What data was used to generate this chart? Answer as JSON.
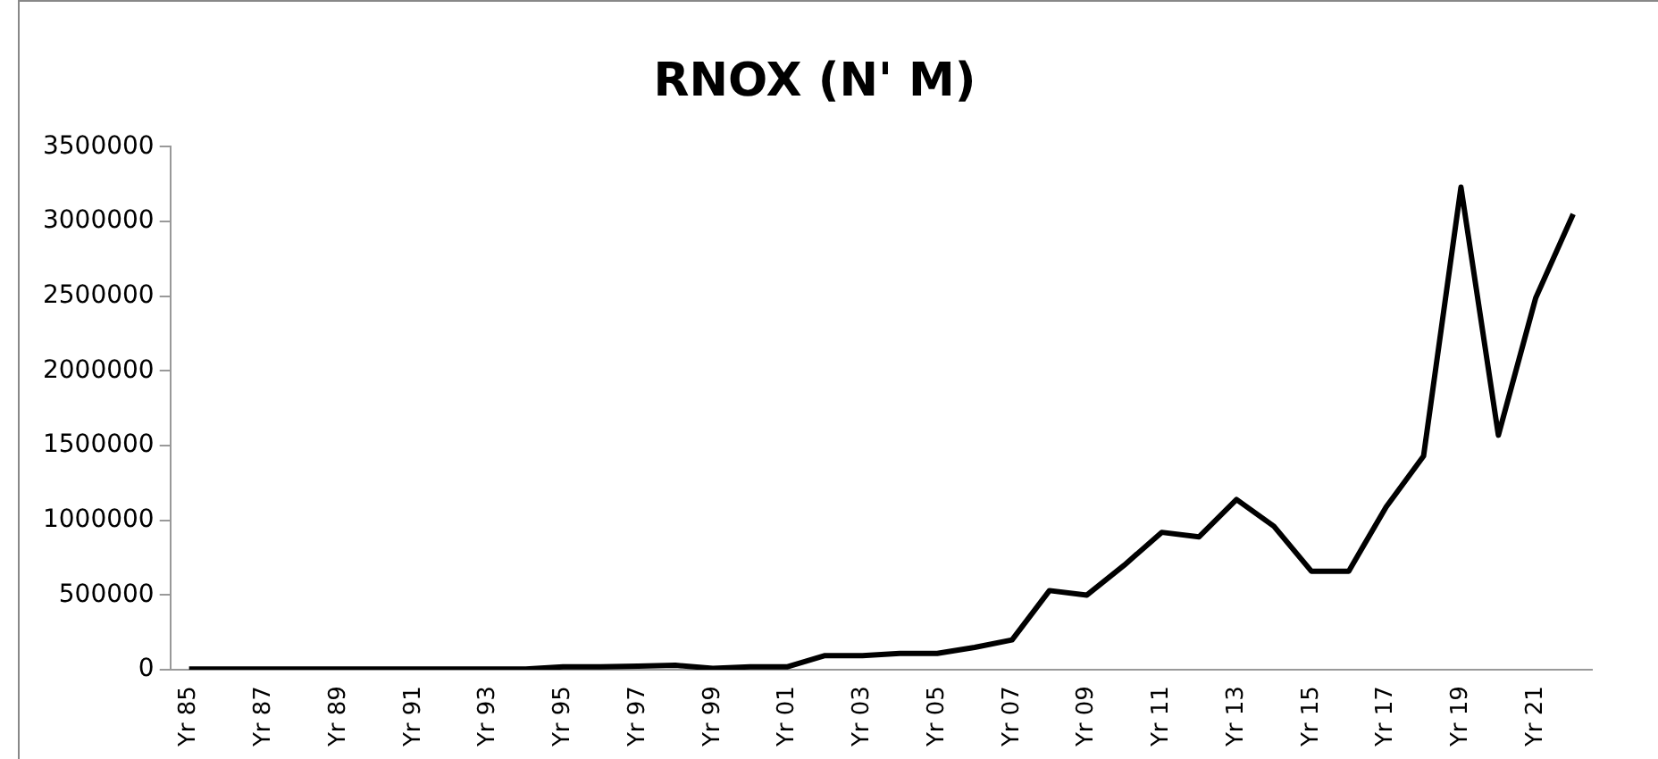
{
  "chart_data": {
    "type": "line",
    "title": "RNOX (N' M)",
    "categories": [
      "Yr 85",
      null,
      "Yr 87",
      null,
      "Yr 89",
      null,
      "Yr 91",
      null,
      "Yr 93",
      null,
      "Yr 95",
      null,
      "Yr 97",
      null,
      "Yr 99",
      null,
      "Yr 01",
      null,
      "Yr 03",
      null,
      "Yr 05",
      null,
      "Yr 07",
      null,
      "Yr 09",
      null,
      "Yr 11",
      null,
      "Yr 13",
      null,
      "Yr 15",
      null,
      "Yr 17",
      null,
      "Yr 19",
      null,
      "Yr 21",
      null
    ],
    "series": [
      {
        "color": "#000000",
        "values": [
          5000,
          5000,
          5000,
          5000,
          5000,
          5000,
          5000,
          5000,
          5000,
          5000,
          20000,
          20000,
          25000,
          30000,
          10000,
          20000,
          20000,
          95000,
          95000,
          110000,
          110000,
          150000,
          200000,
          530000,
          500000,
          700000,
          920000,
          890000,
          1140000,
          960000,
          660000,
          660000,
          1090000,
          1430000,
          3230000,
          1570000,
          2490000,
          3050000
        ]
      }
    ],
    "ylim": [
      0,
      3500000
    ],
    "yticks": [
      0,
      500000,
      1000000,
      1500000,
      2000000,
      2500000,
      3000000,
      3500000
    ],
    "grid": false,
    "legend": false,
    "marker": "none",
    "line_style": "solid"
  }
}
